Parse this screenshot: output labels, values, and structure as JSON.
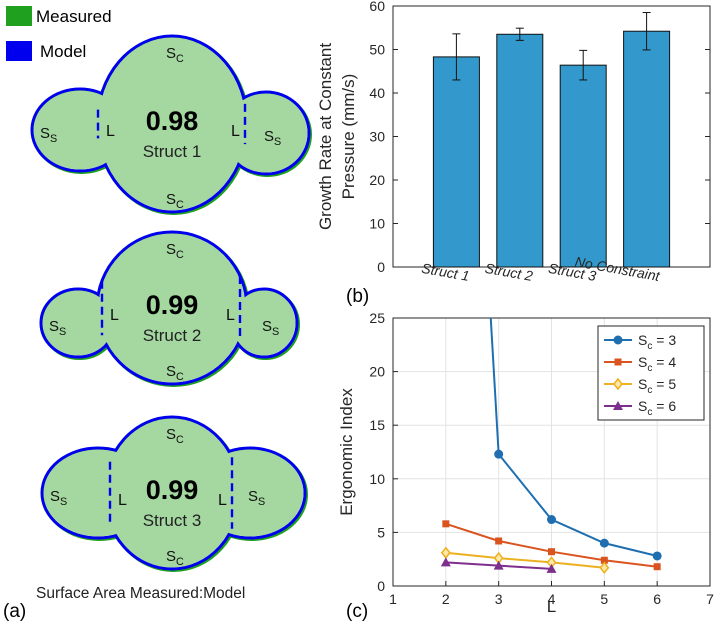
{
  "panel_a": {
    "panel_label": "(a)",
    "legend": [
      {
        "label": "Measured",
        "color": "#1fa11f"
      },
      {
        "label": "Model",
        "color": "#0000ee"
      }
    ],
    "footer": "Surface Area Measured:Model",
    "shape_labels": {
      "center": "S",
      "center_sub": "C",
      "side": "S",
      "side_sub": "S",
      "link": "L"
    },
    "colors": {
      "fill": "#a4d8a0",
      "measured": "#1fa11f",
      "model": "#0000ee"
    },
    "structs": [
      {
        "ratio": "0.98",
        "name": "Struct 1"
      },
      {
        "ratio": "0.99",
        "name": "Struct 2"
      },
      {
        "ratio": "0.99",
        "name": "Struct 3"
      }
    ]
  },
  "chart_data": [
    {
      "type": "bar",
      "panel_label": "(b)",
      "ylabel_lines": [
        "Growth Rate at Constant",
        "Pressure (mm/s)"
      ],
      "xlabel": "",
      "categories": [
        "Struct 1",
        "Struct 2",
        "Struct 3",
        "No Constraint"
      ],
      "values": [
        48.3,
        53.5,
        46.4,
        54.2
      ],
      "errors": [
        5.3,
        1.4,
        3.4,
        4.3
      ],
      "ylim": [
        0,
        60
      ],
      "yticks": [
        0,
        10,
        20,
        30,
        40,
        50,
        60
      ],
      "bar_color": "#3399cc"
    },
    {
      "type": "line",
      "panel_label": "(c)",
      "xlabel": "L",
      "ylabel": "Ergonomic Index",
      "xlim": [
        1,
        7
      ],
      "ylim": [
        0,
        25
      ],
      "xticks": [
        1,
        2,
        3,
        4,
        5,
        6,
        7
      ],
      "yticks": [
        0,
        5,
        10,
        15,
        20,
        25
      ],
      "grid": true,
      "legend_position": "top-right",
      "series": [
        {
          "name": "S",
          "sub": "c",
          "suffix": " = 3",
          "color": "#1f6fb0",
          "marker": "circle",
          "x": [
            2.85,
            3,
            4,
            5,
            6
          ],
          "y": [
            25,
            12.3,
            6.2,
            4.0,
            2.8
          ]
        },
        {
          "name": "S",
          "sub": "c",
          "suffix": " = 4",
          "color": "#d9541e",
          "marker": "square",
          "x": [
            2,
            3,
            4,
            5,
            6
          ],
          "y": [
            5.8,
            4.2,
            3.2,
            2.4,
            1.8
          ]
        },
        {
          "name": "S",
          "sub": "c",
          "suffix": " = 5",
          "color": "#edb020",
          "marker": "diamond",
          "x": [
            2,
            3,
            4,
            5
          ],
          "y": [
            3.1,
            2.6,
            2.2,
            1.7
          ]
        },
        {
          "name": "S",
          "sub": "c",
          "suffix": " = 6",
          "color": "#7e2f8e",
          "marker": "triangle",
          "x": [
            2,
            3,
            4
          ],
          "y": [
            2.2,
            1.9,
            1.6
          ]
        }
      ]
    }
  ]
}
